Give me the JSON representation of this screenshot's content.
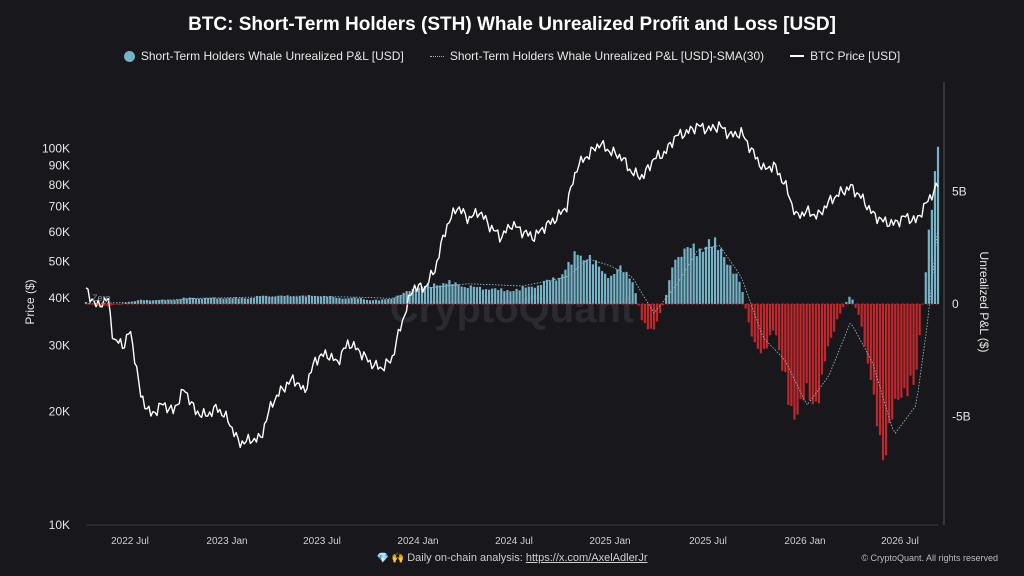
{
  "chart_data": {
    "type": "bar+line",
    "title": "BTC: Short-Term Holders (STH) Whale Unrealized Profit and Loss [USD]",
    "legend_position": "top",
    "series": [
      {
        "name": "Short-Term Holders Whale Unrealized P&L [USD]",
        "kind": "bar",
        "color_positive": "#76b3c7",
        "color_negative": "#c0282c",
        "axis": "right"
      },
      {
        "name": "Short-Term Holders Whale Unrealized P&L [USD]-SMA(30)",
        "kind": "line",
        "color": "#8fb7c3",
        "style": "dotted",
        "axis": "right"
      },
      {
        "name": "BTC Price [USD]",
        "kind": "line",
        "color": "#ffffff",
        "axis": "left"
      }
    ],
    "x_ticks": [
      "2022 Jul",
      "2023 Jan",
      "2023 Jul",
      "2024 Jan",
      "2024 Jul",
      "2025 Jan",
      "2025 Jul",
      "2026 Jan",
      "2026 Jul"
    ],
    "y_left": {
      "label": "Price ($)",
      "scale": "log",
      "ticks": [
        10000,
        20000,
        30000,
        40000,
        50000,
        60000,
        70000,
        80000,
        90000,
        100000
      ],
      "tick_labels": [
        "10K",
        "20K",
        "30K",
        "40K",
        "50K",
        "60K",
        "70K",
        "80K",
        "90K",
        "100K"
      ]
    },
    "y_right": {
      "label": "Unrealized P&L ($)",
      "ticks": [
        5000000000,
        0,
        -5000000000
      ],
      "tick_labels": [
        "5B",
        "0",
        "-5B"
      ]
    },
    "zero_label": "Zero",
    "btc_price": [
      [
        0,
        42000
      ],
      [
        2,
        38000
      ],
      [
        4,
        40000
      ],
      [
        5,
        31000
      ],
      [
        7,
        30000
      ],
      [
        8,
        33000
      ],
      [
        10,
        22000
      ],
      [
        12,
        19500
      ],
      [
        14,
        21000
      ],
      [
        16,
        20000
      ],
      [
        18,
        23000
      ],
      [
        20,
        20000
      ],
      [
        22,
        19500
      ],
      [
        24,
        20500
      ],
      [
        26,
        19000
      ],
      [
        28,
        16500
      ],
      [
        30,
        16800
      ],
      [
        32,
        17000
      ],
      [
        34,
        21000
      ],
      [
        36,
        23000
      ],
      [
        38,
        24500
      ],
      [
        40,
        22500
      ],
      [
        42,
        27500
      ],
      [
        44,
        28500
      ],
      [
        46,
        27000
      ],
      [
        48,
        30500
      ],
      [
        50,
        29000
      ],
      [
        52,
        27000
      ],
      [
        54,
        26000
      ],
      [
        56,
        27500
      ],
      [
        58,
        35000
      ],
      [
        60,
        43000
      ],
      [
        62,
        42500
      ],
      [
        64,
        48000
      ],
      [
        66,
        62000
      ],
      [
        68,
        70000
      ],
      [
        70,
        65000
      ],
      [
        72,
        68000
      ],
      [
        74,
        62000
      ],
      [
        76,
        58000
      ],
      [
        78,
        63000
      ],
      [
        80,
        60000
      ],
      [
        82,
        58000
      ],
      [
        84,
        62000
      ],
      [
        86,
        65000
      ],
      [
        88,
        70000
      ],
      [
        90,
        90000
      ],
      [
        92,
        96000
      ],
      [
        94,
        103000
      ],
      [
        96,
        98000
      ],
      [
        98,
        95000
      ],
      [
        100,
        86000
      ],
      [
        102,
        84000
      ],
      [
        104,
        94000
      ],
      [
        106,
        97000
      ],
      [
        108,
        108000
      ],
      [
        110,
        110000
      ],
      [
        112,
        115000
      ],
      [
        114,
        112000
      ],
      [
        116,
        115000
      ],
      [
        118,
        108000
      ],
      [
        120,
        110000
      ],
      [
        122,
        98000
      ],
      [
        124,
        88000
      ],
      [
        126,
        90000
      ],
      [
        128,
        80000
      ],
      [
        130,
        66000
      ],
      [
        132,
        68000
      ],
      [
        134,
        66000
      ],
      [
        136,
        72000
      ],
      [
        138,
        76000
      ],
      [
        140,
        79000
      ],
      [
        142,
        74000
      ],
      [
        144,
        67000
      ],
      [
        146,
        64000
      ],
      [
        148,
        63000
      ],
      [
        150,
        66000
      ],
      [
        152,
        64000
      ],
      [
        154,
        72000
      ],
      [
        156,
        80000
      ]
    ],
    "pnl_billions": [
      [
        0,
        0.1
      ],
      [
        2,
        -0.1
      ],
      [
        4,
        -0.1
      ],
      [
        6,
        0.0
      ],
      [
        8,
        0.1
      ],
      [
        10,
        0.2
      ],
      [
        12,
        0.2
      ],
      [
        14,
        0.2
      ],
      [
        16,
        0.2
      ],
      [
        18,
        0.3
      ],
      [
        20,
        0.3
      ],
      [
        22,
        0.3
      ],
      [
        24,
        0.3
      ],
      [
        26,
        0.3
      ],
      [
        28,
        0.3
      ],
      [
        30,
        0.3
      ],
      [
        32,
        0.4
      ],
      [
        34,
        0.4
      ],
      [
        36,
        0.4
      ],
      [
        38,
        0.4
      ],
      [
        40,
        0.4
      ],
      [
        42,
        0.4
      ],
      [
        44,
        0.4
      ],
      [
        46,
        0.3
      ],
      [
        48,
        0.3
      ],
      [
        50,
        0.3
      ],
      [
        52,
        0.2
      ],
      [
        54,
        0.2
      ],
      [
        56,
        0.3
      ],
      [
        58,
        0.5
      ],
      [
        60,
        0.8
      ],
      [
        62,
        0.9
      ],
      [
        64,
        1.0
      ],
      [
        66,
        1.1
      ],
      [
        68,
        1.0
      ],
      [
        70,
        0.9
      ],
      [
        72,
        0.8
      ],
      [
        74,
        0.8
      ],
      [
        76,
        0.7
      ],
      [
        78,
        0.7
      ],
      [
        80,
        0.8
      ],
      [
        82,
        0.9
      ],
      [
        84,
        1.1
      ],
      [
        86,
        1.3
      ],
      [
        88,
        1.8
      ],
      [
        90,
        2.6
      ],
      [
        92,
        2.4
      ],
      [
        94,
        1.8
      ],
      [
        96,
        1.4
      ],
      [
        98,
        1.8
      ],
      [
        100,
        1.3
      ],
      [
        102,
        -1.0
      ],
      [
        104,
        -1.4
      ],
      [
        106,
        0.2
      ],
      [
        108,
        2.5
      ],
      [
        110,
        2.8
      ],
      [
        112,
        2.7
      ],
      [
        114,
        3.2
      ],
      [
        116,
        2.8
      ],
      [
        118,
        2.0
      ],
      [
        120,
        0.9
      ],
      [
        122,
        -2.0
      ],
      [
        124,
        -2.4
      ],
      [
        126,
        -1.3
      ],
      [
        128,
        -3.8
      ],
      [
        130,
        -6.2
      ],
      [
        132,
        -4.2
      ],
      [
        134,
        -5.2
      ],
      [
        136,
        -2.0
      ],
      [
        138,
        -0.5
      ],
      [
        140,
        0.5
      ],
      [
        142,
        -1.0
      ],
      [
        144,
        -4.8
      ],
      [
        146,
        -7.5
      ],
      [
        148,
        -5.5
      ],
      [
        150,
        -4.2
      ],
      [
        152,
        -3.8
      ],
      [
        154,
        2.5
      ],
      [
        156,
        7.8
      ]
    ],
    "pnl_sma_billions": [
      [
        0,
        0.0
      ],
      [
        10,
        0.1
      ],
      [
        20,
        0.25
      ],
      [
        30,
        0.3
      ],
      [
        40,
        0.35
      ],
      [
        50,
        0.3
      ],
      [
        56,
        0.25
      ],
      [
        62,
        0.7
      ],
      [
        70,
        0.9
      ],
      [
        80,
        0.8
      ],
      [
        88,
        1.2
      ],
      [
        92,
        2.0
      ],
      [
        96,
        1.7
      ],
      [
        100,
        1.2
      ],
      [
        104,
        -0.4
      ],
      [
        108,
        0.8
      ],
      [
        112,
        2.4
      ],
      [
        116,
        2.6
      ],
      [
        120,
        1.2
      ],
      [
        124,
        -1.5
      ],
      [
        128,
        -2.5
      ],
      [
        132,
        -4.5
      ],
      [
        136,
        -3.2
      ],
      [
        140,
        -0.8
      ],
      [
        144,
        -2.6
      ],
      [
        148,
        -5.8
      ],
      [
        152,
        -4.5
      ],
      [
        154,
        -1.0
      ],
      [
        156,
        3.5
      ]
    ]
  },
  "footer": {
    "text": "Daily on-chain analysis:",
    "link": "https://x.com/AxelAdlerJr",
    "emoji": "💎 🙌",
    "copyright": "© CryptoQuant. All rights reserved"
  },
  "watermark": "CryptoQuant"
}
